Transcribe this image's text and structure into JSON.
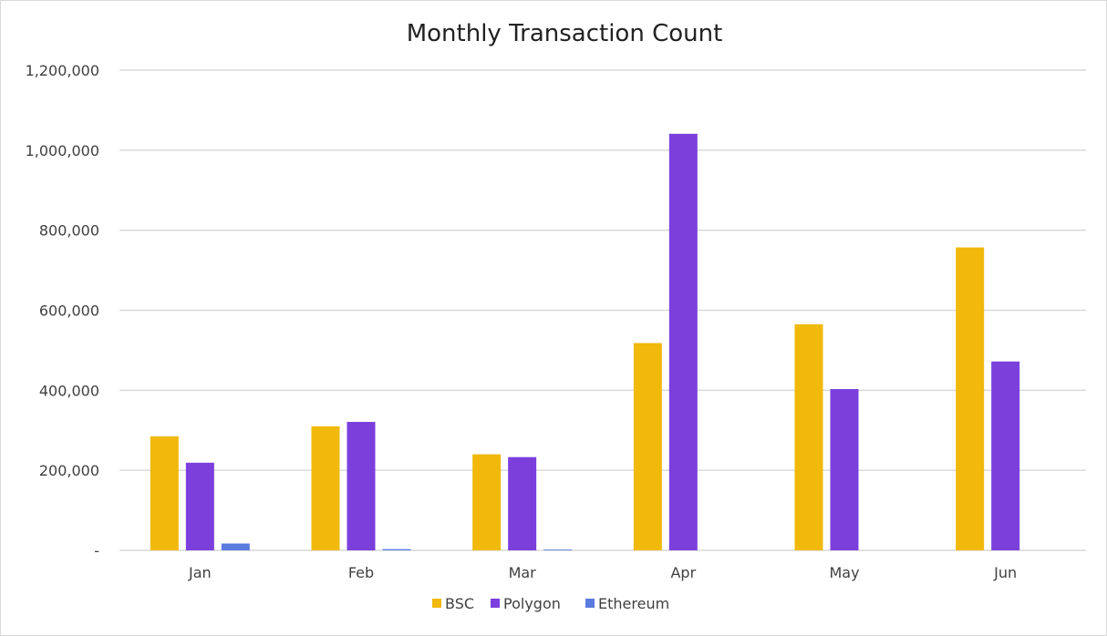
{
  "chart_data": {
    "type": "bar",
    "title": "Monthly Transaction Count",
    "categories": [
      "Jan",
      "Feb",
      "Mar",
      "Apr",
      "May",
      "Jun"
    ],
    "series": [
      {
        "name": "BSC",
        "color": "#F0B90B",
        "values": [
          285000,
          310000,
          240000,
          518000,
          565000,
          757000
        ]
      },
      {
        "name": "Polygon",
        "color": "#7B3FDC",
        "values": [
          219000,
          321000,
          233000,
          1041000,
          403000,
          472000
        ]
      },
      {
        "name": "Ethereum",
        "color": "#5B7BE0",
        "values": [
          17000,
          3000,
          2000,
          0,
          0,
          0
        ]
      }
    ],
    "ylim": [
      0,
      1200000
    ],
    "yticks": [
      0,
      200000,
      400000,
      600000,
      800000,
      1000000,
      1200000
    ],
    "ytick_labels": [
      "-",
      "200,000",
      "400,000",
      "600,000",
      "800,000",
      "1,000,000",
      "1,200,000"
    ],
    "grid": true,
    "legend_position": "bottom",
    "grid_color": "#d9d9d9"
  }
}
